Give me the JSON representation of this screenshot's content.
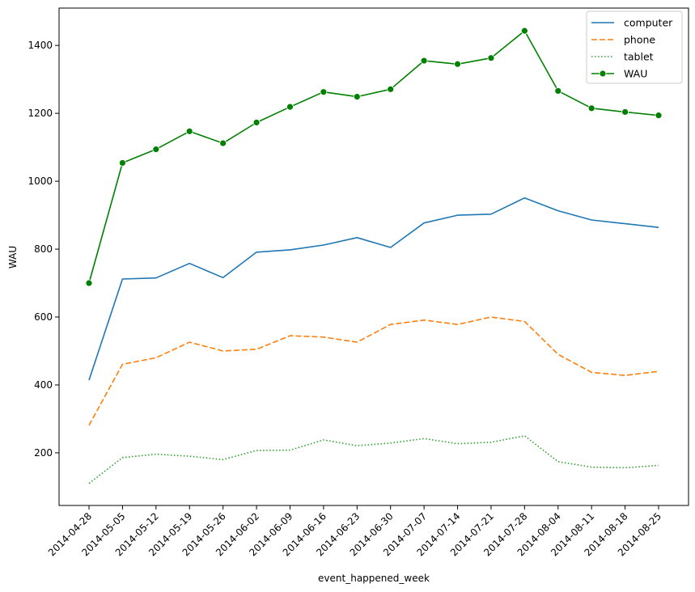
{
  "chart_data": {
    "type": "line",
    "xlabel": "event_happened_week",
    "ylabel": "WAU",
    "x": [
      "2014-04-28",
      "2014-05-05",
      "2014-05-12",
      "2014-05-19",
      "2014-05-26",
      "2014-06-02",
      "2014-06-09",
      "2014-06-16",
      "2014-06-23",
      "2014-06-30",
      "2014-07-07",
      "2014-07-14",
      "2014-07-21",
      "2014-07-28",
      "2014-08-04",
      "2014-08-11",
      "2014-08-18",
      "2014-08-25"
    ],
    "ylim": [
      45,
      1510
    ],
    "yticks": [
      200,
      400,
      600,
      800,
      1000,
      1200,
      1400
    ],
    "grid": false,
    "legend_position": "top-right",
    "series": [
      {
        "name": "computer",
        "color": "#1f77b4",
        "style": "solid",
        "marker": false,
        "values": [
          414,
          712,
          715,
          758,
          716,
          791,
          798,
          812,
          834,
          805,
          877,
          900,
          903,
          951,
          913,
          886,
          875,
          864
        ]
      },
      {
        "name": "phone",
        "color": "#ff7f0e",
        "style": "dashed",
        "marker": false,
        "values": [
          281,
          461,
          480,
          526,
          500,
          505,
          545,
          541,
          526,
          578,
          591,
          578,
          600,
          587,
          490,
          437,
          428,
          440
        ]
      },
      {
        "name": "tablet",
        "color": "#2ca02c",
        "style": "dotted",
        "marker": false,
        "values": [
          110,
          186,
          196,
          190,
          180,
          207,
          208,
          238,
          221,
          229,
          242,
          227,
          231,
          250,
          174,
          158,
          156,
          163
        ]
      },
      {
        "name": "WAU",
        "color": "#008000",
        "style": "solid",
        "marker": true,
        "values": [
          700,
          1054,
          1094,
          1147,
          1112,
          1173,
          1219,
          1263,
          1249,
          1271,
          1355,
          1345,
          1363,
          1443,
          1266,
          1215,
          1204,
          1194
        ]
      }
    ]
  }
}
